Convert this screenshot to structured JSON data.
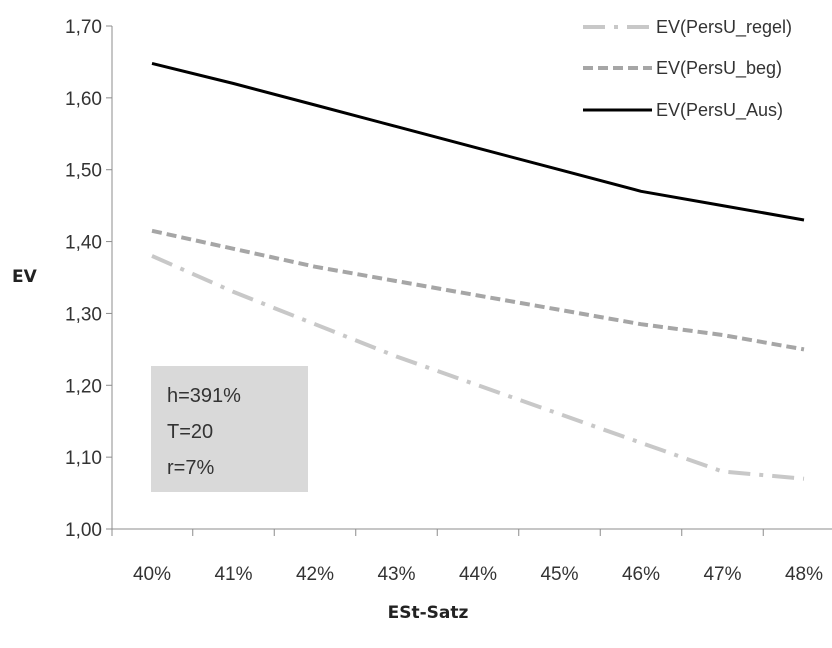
{
  "chart_data": {
    "type": "line",
    "title": "",
    "xlabel": "ESt-Satz",
    "ylabel": "EV",
    "categories": [
      "40%",
      "41%",
      "42%",
      "43%",
      "44%",
      "45%",
      "46%",
      "47%",
      "48%"
    ],
    "ylim": [
      1.0,
      1.7
    ],
    "yticks": [
      1.0,
      1.1,
      1.2,
      1.3,
      1.4,
      1.5,
      1.6,
      1.7
    ],
    "ytick_labels": [
      "1,00",
      "1,10",
      "1,20",
      "1,30",
      "1,40",
      "1,50",
      "1,60",
      "1,70"
    ],
    "grid": false,
    "legend_position": "top-right",
    "series": [
      {
        "name": "EV(PersU_regel)",
        "color": "#c8c8c8",
        "style": "dash-dot",
        "values": [
          1.38,
          1.33,
          1.285,
          1.24,
          1.2,
          1.16,
          1.12,
          1.08,
          1.07
        ]
      },
      {
        "name": "EV(PersU_beg)",
        "color": "#a6a6a6",
        "style": "dashed",
        "values": [
          1.415,
          1.39,
          1.365,
          1.345,
          1.325,
          1.305,
          1.285,
          1.27,
          1.25
        ]
      },
      {
        "name": "EV(PersU_Aus)",
        "color": "#000000",
        "style": "solid",
        "values": [
          1.648,
          1.62,
          1.59,
          1.56,
          1.53,
          1.5,
          1.47,
          1.45,
          1.43
        ]
      }
    ],
    "annotation": {
      "lines": [
        "h=391%",
        "T=20",
        "r=7%"
      ],
      "background": "#d9d9d9"
    }
  }
}
